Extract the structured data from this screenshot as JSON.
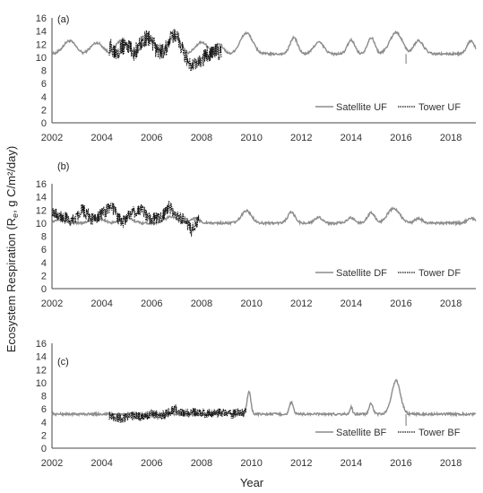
{
  "figure": {
    "ylabel_main": "Ecosystem Respiration (R",
    "ylabel_sub": "e",
    "ylabel_units": ", g C/m²/day)",
    "xlabel": "Year"
  },
  "chart_data": [
    {
      "type": "line",
      "panel_label": "(a)",
      "xlim": [
        2002,
        2019
      ],
      "ylim": [
        0,
        16
      ],
      "x_ticks": [
        "2002",
        "2004",
        "2006",
        "2008",
        "2010",
        "2012",
        "2014",
        "2016",
        "2018"
      ],
      "y_ticks": [
        "0",
        "2",
        "4",
        "6",
        "8",
        "10",
        "12",
        "14",
        "16"
      ],
      "legend_position": "bottom-right",
      "colors": {
        "satellite": "#8c8c8c",
        "tower": "#111111"
      },
      "series": [
        {
          "name": "Satellite UF",
          "style": "solid",
          "baseline": 10.5,
          "range": [
            2002.0,
            2019.0
          ],
          "peaks": [
            [
              2002.7,
              12.5,
              0.5
            ],
            [
              2003.8,
              12.2,
              0.5
            ],
            [
              2004.8,
              12.6,
              0.5
            ],
            [
              2005.9,
              12.8,
              0.5
            ],
            [
              2006.9,
              13.2,
              0.5
            ],
            [
              2008.0,
              12.3,
              0.5
            ],
            [
              2008.7,
              12.0,
              0.35
            ],
            [
              2009.8,
              13.7,
              0.5
            ],
            [
              2011.7,
              13.0,
              0.3
            ],
            [
              2012.7,
              12.3,
              0.4
            ],
            [
              2014.0,
              12.6,
              0.3
            ],
            [
              2014.8,
              13.0,
              0.3
            ],
            [
              2015.8,
              13.8,
              0.5
            ],
            [
              2016.7,
              12.5,
              0.4
            ],
            [
              2018.8,
              12.5,
              0.3
            ]
          ],
          "dips": [
            [
              2016.2,
              9.0
            ]
          ]
        },
        {
          "name": "Tower UF",
          "style": "dotted",
          "range": [
            2004.3,
            2008.8
          ],
          "points": [
            [
              2004.3,
              11.5
            ],
            [
              2004.6,
              11.0
            ],
            [
              2005.0,
              12.0
            ],
            [
              2005.3,
              10.5
            ],
            [
              2005.6,
              12.5
            ],
            [
              2005.9,
              13.0
            ],
            [
              2006.2,
              11.0
            ],
            [
              2006.5,
              10.8
            ],
            [
              2006.8,
              13.0
            ],
            [
              2007.0,
              13.5
            ],
            [
              2007.3,
              10.5
            ],
            [
              2007.6,
              8.5
            ],
            [
              2007.9,
              9.0
            ],
            [
              2008.2,
              10.5
            ],
            [
              2008.5,
              11.0
            ],
            [
              2008.8,
              10.5
            ]
          ],
          "noise": 1.3
        }
      ]
    },
    {
      "type": "line",
      "panel_label": "(b)",
      "xlim": [
        2002,
        2019
      ],
      "ylim": [
        0,
        16
      ],
      "x_ticks": [
        "2002",
        "2004",
        "2006",
        "2008",
        "2010",
        "2012",
        "2014",
        "2016",
        "2018"
      ],
      "y_ticks": [
        "0",
        "2",
        "4",
        "6",
        "8",
        "10",
        "12",
        "14",
        "16"
      ],
      "legend_position": "bottom-right",
      "colors": {
        "satellite": "#8c8c8c",
        "tower": "#111111"
      },
      "series": [
        {
          "name": "Satellite DF",
          "style": "solid",
          "baseline": 10.0,
          "range": [
            2002.0,
            2019.0
          ],
          "peaks": [
            [
              2002.3,
              10.6,
              0.4
            ],
            [
              2003.8,
              10.8,
              0.5
            ],
            [
              2005.0,
              10.8,
              0.5
            ],
            [
              2006.8,
              11.0,
              0.5
            ],
            [
              2007.7,
              10.7,
              0.4
            ],
            [
              2009.8,
              11.9,
              0.4
            ],
            [
              2011.6,
              11.6,
              0.3
            ],
            [
              2012.7,
              10.9,
              0.3
            ],
            [
              2014.0,
              10.8,
              0.3
            ],
            [
              2014.8,
              11.6,
              0.3
            ],
            [
              2015.7,
              12.2,
              0.5
            ],
            [
              2016.7,
              10.7,
              0.3
            ],
            [
              2018.8,
              10.8,
              0.3
            ]
          ],
          "dips": []
        },
        {
          "name": "Tower DF",
          "style": "dotted",
          "range": [
            2002.0,
            2007.9
          ],
          "points": [
            [
              2002.0,
              12.0
            ],
            [
              2002.4,
              11.0
            ],
            [
              2002.8,
              10.2
            ],
            [
              2003.2,
              12.2
            ],
            [
              2003.6,
              10.5
            ],
            [
              2004.0,
              11.5
            ],
            [
              2004.4,
              12.5
            ],
            [
              2004.8,
              10.0
            ],
            [
              2005.2,
              11.5
            ],
            [
              2005.6,
              12.0
            ],
            [
              2006.0,
              10.5
            ],
            [
              2006.4,
              11.0
            ],
            [
              2006.7,
              12.5
            ],
            [
              2007.0,
              11.0
            ],
            [
              2007.3,
              10.5
            ],
            [
              2007.6,
              8.8
            ],
            [
              2007.9,
              10.5
            ]
          ],
          "noise": 1.0
        }
      ]
    },
    {
      "type": "line",
      "panel_label": "(c)",
      "xlim": [
        2002,
        2019
      ],
      "ylim": [
        0,
        16
      ],
      "x_ticks": [
        "2002",
        "2004",
        "2006",
        "2008",
        "2010",
        "2012",
        "2014",
        "2016",
        "2018"
      ],
      "y_ticks": [
        "0",
        "2",
        "4",
        "6",
        "8",
        "10",
        "12",
        "14",
        "16"
      ],
      "legend_position": "bottom-right",
      "colors": {
        "satellite": "#8c8c8c",
        "tower": "#111111"
      },
      "series": [
        {
          "name": "Satellite BF",
          "style": "solid",
          "baseline": 5.2,
          "range": [
            2002.0,
            2019.0
          ],
          "peaks": [
            [
              2009.9,
              8.7,
              0.15
            ],
            [
              2011.6,
              7.0,
              0.15
            ],
            [
              2014.0,
              6.3,
              0.1
            ],
            [
              2014.8,
              6.8,
              0.15
            ],
            [
              2015.8,
              10.3,
              0.35
            ]
          ],
          "dips": [
            [
              2016.2,
              3.4
            ]
          ]
        },
        {
          "name": "Tower BF",
          "style": "dotted",
          "range": [
            2004.3,
            2009.8
          ],
          "points": [
            [
              2004.3,
              5.0
            ],
            [
              2004.8,
              4.5
            ],
            [
              2005.2,
              5.0
            ],
            [
              2005.6,
              4.8
            ],
            [
              2006.0,
              5.2
            ],
            [
              2006.5,
              5.0
            ],
            [
              2006.9,
              6.0
            ],
            [
              2007.3,
              5.3
            ],
            [
              2007.8,
              5.5
            ],
            [
              2008.2,
              5.3
            ],
            [
              2008.7,
              5.4
            ],
            [
              2009.2,
              5.2
            ],
            [
              2009.8,
              5.5
            ]
          ],
          "noise": 0.7
        }
      ]
    }
  ]
}
